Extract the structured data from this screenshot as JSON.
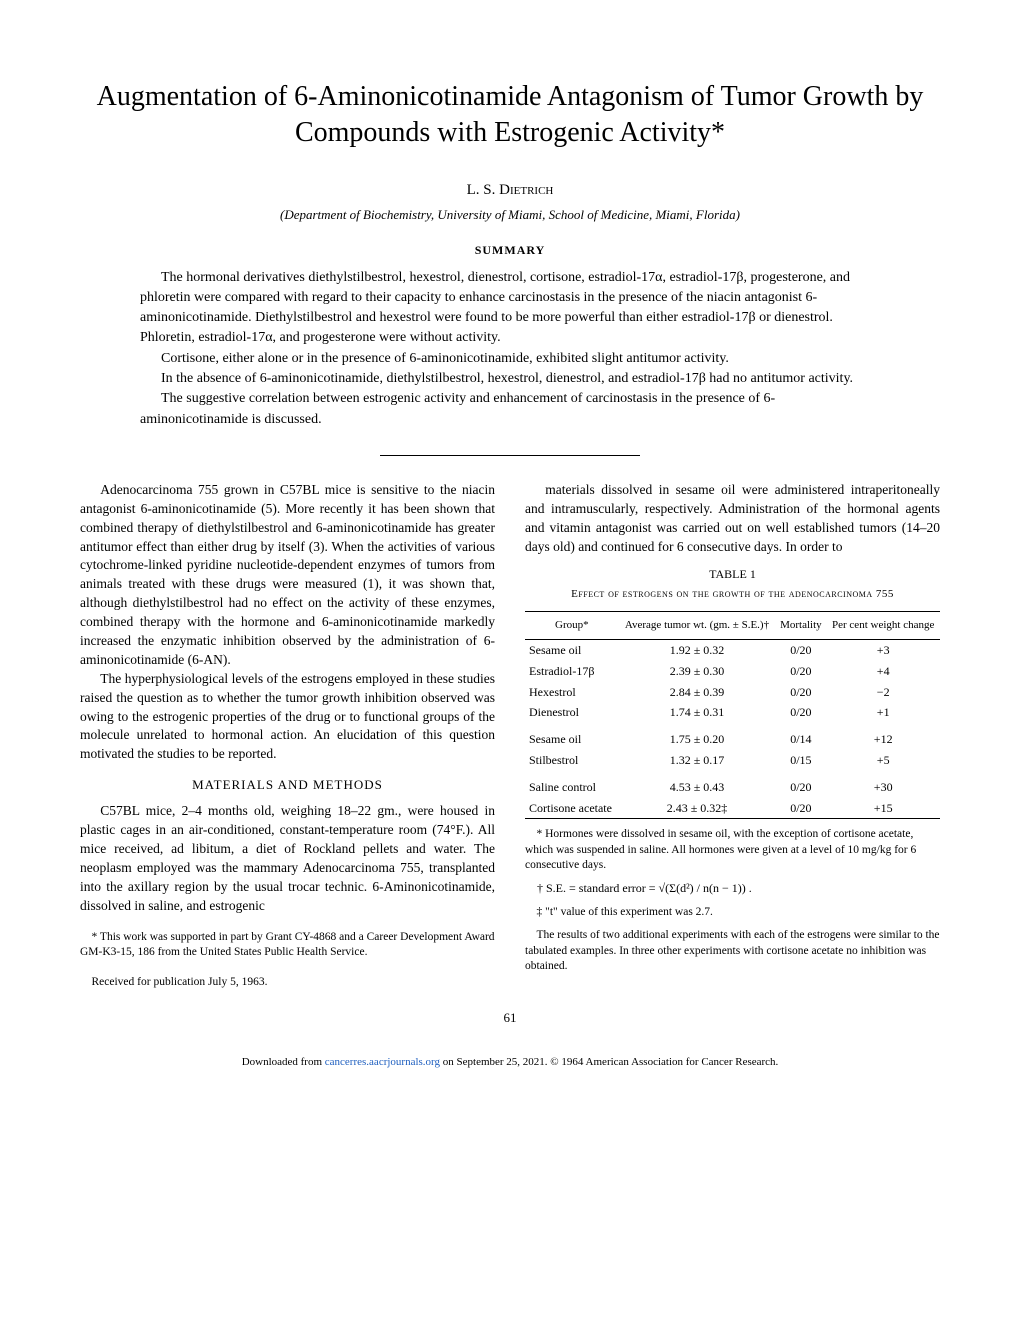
{
  "title": "Augmentation of 6-Aminonicotinamide Antagonism of Tumor Growth by Compounds with Estrogenic Activity*",
  "author": "L. S. Dietrich",
  "affiliation": "(Department of Biochemistry, University of Miami, School of Medicine, Miami, Florida)",
  "summary_heading": "SUMMARY",
  "summary": {
    "p1": "The hormonal derivatives diethylstilbestrol, hexestrol, dienestrol, cortisone, estradiol-17α, estradiol-17β, progesterone, and phloretin were compared with regard to their capacity to enhance carcinostasis in the presence of the niacin antagonist 6-aminonicotinamide. Diethylstilbestrol and hexestrol were found to be more powerful than either estradiol-17β or dienestrol. Phloretin, estradiol-17α, and progesterone were without activity.",
    "p2": "Cortisone, either alone or in the presence of 6-aminonicotinamide, exhibited slight antitumor activity.",
    "p3": "In the absence of 6-aminonicotinamide, diethylstilbestrol, hexestrol, dienestrol, and estradiol-17β had no antitumor activity.",
    "p4": "The suggestive correlation between estrogenic activity and enhancement of carcinostasis in the presence of 6-aminonicotinamide is discussed."
  },
  "body": {
    "left": {
      "p1": "Adenocarcinoma 755 grown in C57BL mice is sensitive to the niacin antagonist 6-aminonicotinamide (5). More recently it has been shown that combined therapy of diethylstilbestrol and 6-aminonicotinamide has greater antitumor effect than either drug by itself (3). When the activities of various cytochrome-linked pyridine nucleotide-dependent enzymes of tumors from animals treated with these drugs were measured (1), it was shown that, although diethylstilbestrol had no effect on the activity of these enzymes, combined therapy with the hormone and 6-aminonicotinamide markedly increased the enzymatic inhibition observed by the administration of 6-aminonicotinamide (6-AN).",
      "p2": "The hyperphysiological levels of the estrogens employed in these studies raised the question as to whether the tumor growth inhibition observed was owing to the estrogenic properties of the drug or to functional groups of the molecule unrelated to hormonal action. An elucidation of this question motivated the studies to be reported.",
      "methods_heading": "MATERIALS AND METHODS",
      "p3": "C57BL mice, 2–4 months old, weighing 18–22 gm., were housed in plastic cages in an air-conditioned, constant-temperature room (74°F.). All mice received, ad libitum, a diet of Rockland pellets and water. The neoplasm employed was the mammary Adenocarcinoma 755, transplanted into the axillary region by the usual trocar technic. 6-Aminonicotinamide, dissolved in saline, and estrogenic",
      "fn1": "* This work was supported in part by Grant CY-4868 and a Career Development Award GM-K3-15, 186 from the United States Public Health Service.",
      "fn2": "Received for publication July 5, 1963."
    },
    "right": {
      "p1": "materials dissolved in sesame oil were administered intraperitoneally and intramuscularly, respectively. Administration of the hormonal agents and vitamin antagonist was carried out on well established tumors (14–20 days old) and continued for 6 consecutive days. In order to",
      "table_caption": "TABLE 1",
      "table_title": "Effect of estrogens on the growth of the adenocarcinoma 755",
      "table": {
        "columns": [
          "Group*",
          "Average tumor wt. (gm. ± S.E.)†",
          "Mortality",
          "Per cent weight change"
        ],
        "rows": [
          [
            "Sesame oil",
            "1.92 ± 0.32",
            "0/20",
            "+3"
          ],
          [
            "Estradiol-17β",
            "2.39 ± 0.30",
            "0/20",
            "+4"
          ],
          [
            "Hexestrol",
            "2.84 ± 0.39",
            "0/20",
            "−2"
          ],
          [
            "Dienestrol",
            "1.74 ± 0.31",
            "0/20",
            "+1"
          ],
          [
            "Sesame oil",
            "1.75 ± 0.20",
            "0/14",
            "+12"
          ],
          [
            "Stilbestrol",
            "1.32 ± 0.17",
            "0/15",
            "+5"
          ],
          [
            "Saline control",
            "4.53 ± 0.43",
            "0/20",
            "+30"
          ],
          [
            "Cortisone acetate",
            "2.43 ± 0.32‡",
            "0/20",
            "+15"
          ]
        ]
      },
      "fn_a": "* Hormones were dissolved in sesame oil, with the exception of cortisone acetate, which was suspended in saline. All hormones were given at a level of 10 mg/kg for 6 consecutive days.",
      "fn_b_label": "† S.E. = standard error = ",
      "fn_b_formula": "√(Σ(d²) / n(n − 1)) .",
      "fn_c": "‡ \"t\" value of this experiment was 2.7.",
      "fn_d": "The results of two additional experiments with each of the estrogens were similar to the tabulated examples. In three other experiments with cortisone acetate no inhibition was obtained."
    }
  },
  "page_number": "61",
  "download": {
    "prefix": "Downloaded from ",
    "link": "cancerres.aacrjournals.org",
    "suffix": " on September 25, 2021. © 1964 American Association for Cancer Research."
  }
}
